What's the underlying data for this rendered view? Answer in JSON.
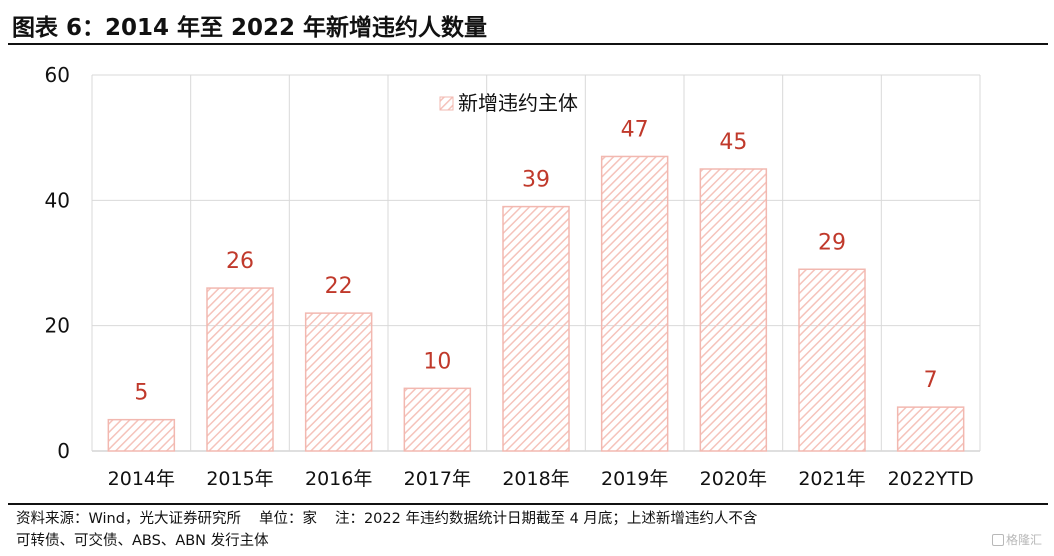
{
  "figure_title": "图表 6：2014 年至 2022 年新增违约人数量",
  "footnote": {
    "source": "资料来源：Wind，光大证券研究所",
    "unit": "单位：家",
    "note_line1": "注：2022 年违约数据统计日期截至 4 月底；上述新增违约人不含",
    "note_line2": "可转债、可交债、ABS、ABN 发行主体"
  },
  "watermark": "格隆汇",
  "colors": {
    "bar_stroke": "#f2b8b0",
    "bar_hatch": "#f5c3bb",
    "data_label": "#c0392b",
    "gridline": "#d9d9d9",
    "axis_text": "#111111"
  },
  "chart_data": {
    "type": "bar",
    "categories": [
      "2014年",
      "2015年",
      "2016年",
      "2017年",
      "2018年",
      "2019年",
      "2020年",
      "2021年",
      "2022YTD"
    ],
    "series": [
      {
        "name": "新增违约主体",
        "values": [
          5,
          26,
          22,
          10,
          39,
          47,
          45,
          29,
          7
        ]
      }
    ],
    "ylim": [
      0,
      60
    ],
    "yticks": [
      0,
      20,
      40,
      60
    ],
    "grid": true,
    "legend": "top-center",
    "data_labels": true
  }
}
